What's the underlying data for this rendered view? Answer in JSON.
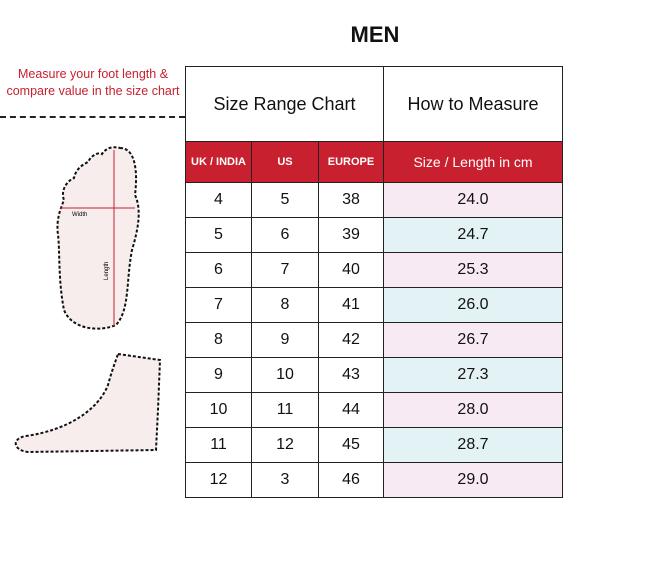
{
  "title": "MEN",
  "instruction": "Measure your foot length & compare value in the size chart",
  "foot_labels": {
    "width": "Width",
    "length": "Length"
  },
  "tabs": {
    "size_range": "Size Range Chart",
    "how_to": "How to Measure"
  },
  "columns": [
    "UK / INDIA",
    "US",
    "EUROPE",
    "Size / Length in cm"
  ],
  "rows": [
    [
      "4",
      "5",
      "38",
      "24.0"
    ],
    [
      "5",
      "6",
      "39",
      "24.7"
    ],
    [
      "6",
      "7",
      "40",
      "25.3"
    ],
    [
      "7",
      "8",
      "41",
      "26.0"
    ],
    [
      "8",
      "9",
      "42",
      "26.7"
    ],
    [
      "9",
      "10",
      "43",
      "27.3"
    ],
    [
      "10",
      "11",
      "44",
      "28.0"
    ],
    [
      "11",
      "12",
      "45",
      "28.7"
    ],
    [
      "12",
      "3",
      "46",
      "29.0"
    ]
  ],
  "colors": {
    "header": "#c8202f",
    "row_alt_1": "#f8eaf3",
    "row_alt_2": "#e2f2f5"
  }
}
